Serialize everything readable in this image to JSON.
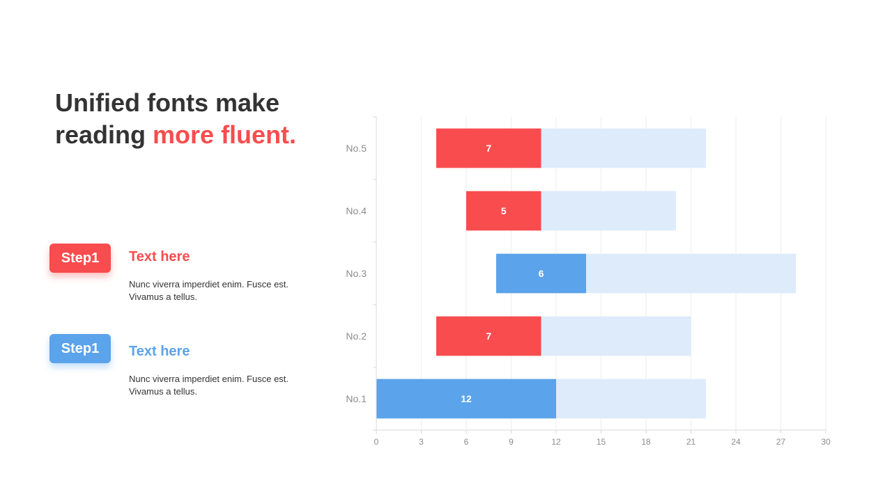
{
  "slide": {
    "title_part1": "Unified fonts make reading ",
    "title_accent": "more fluent.",
    "steps": [
      {
        "badge": "Step1",
        "heading": "Text here",
        "body": "Nunc viverra imperdiet enim. Fusce est. Vivamus a tellus.",
        "color": "#F94C4E"
      },
      {
        "badge": "Step1",
        "heading": "Text here",
        "body": "Nunc viverra imperdiet enim. Fusce est. Vivamus a tellus.",
        "color": "#5BA3EA"
      }
    ]
  },
  "colors": {
    "red": "#F94C4E",
    "blue": "#5BA3EA",
    "light_blue": "#DDEBFA",
    "text_dark": "#333333",
    "axis_gray": "#8c8c8c"
  },
  "chart_data": {
    "type": "bar",
    "orientation": "horizontal",
    "stacked": true,
    "categories": [
      "No.1",
      "No.2",
      "No.3",
      "No.4",
      "No.5"
    ],
    "series": [
      {
        "role": "offset",
        "values": [
          0,
          4,
          8,
          6,
          4
        ]
      },
      {
        "role": "highlight",
        "values": [
          12,
          7,
          6,
          5,
          7
        ],
        "labels": [
          "12",
          "7",
          "6",
          "5",
          "7"
        ],
        "colors": [
          "#5BA3EA",
          "#F94C4E",
          "#5BA3EA",
          "#F94C4E",
          "#F94C4E"
        ]
      },
      {
        "role": "remainder",
        "values": [
          10,
          10,
          14,
          9,
          11
        ],
        "color": "#DDEBFA"
      }
    ],
    "xticks": [
      0,
      3,
      6,
      9,
      12,
      15,
      18,
      21,
      24,
      27,
      30
    ],
    "xlim": [
      0,
      30
    ],
    "grid": "vertical",
    "legend": "none"
  }
}
